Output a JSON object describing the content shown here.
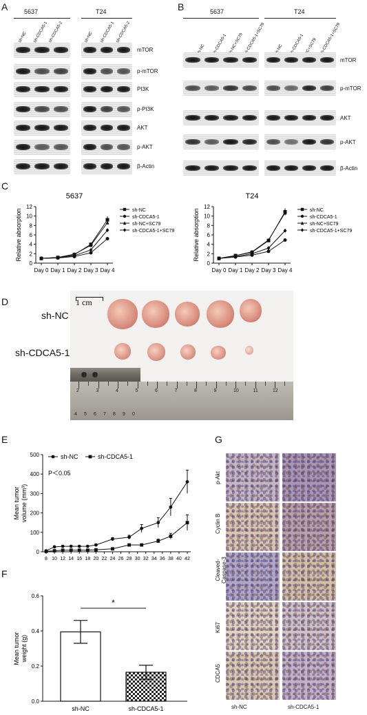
{
  "panel_letters": {
    "a": "A",
    "b": "B",
    "c": "C",
    "d": "D",
    "e": "E",
    "f": "F",
    "g": "G"
  },
  "panelA": {
    "cell_lines": [
      "5637",
      "T24"
    ],
    "lanes_5637": [
      "sh-NC",
      "sh-CDCA5-1",
      "sh-CDCA5-2"
    ],
    "lanes_t24": [
      "sh-NC",
      "sh-CDCA5-1",
      "sh-CDCA5-2"
    ],
    "proteins": [
      "mTOR",
      "p-mTOR",
      "PI3K",
      "p-PI3K",
      "AKT",
      "p-AKT",
      "β-Actin"
    ]
  },
  "panelB": {
    "cell_lines": [
      "5637",
      "T24"
    ],
    "lanes_5637": [
      "sh-NC",
      "sh-CDCA5-1",
      "sh-NC+SC79",
      "sh-CDCA5-1+SC79"
    ],
    "lanes_t24": [
      "sh-NC",
      "sh-CDCA5-1",
      "NC+SC79",
      "sh-CDCA5-1+SC79"
    ],
    "proteins": [
      "mTOR",
      "p-mTOR",
      "AKT",
      "p-AKT",
      "β-Actin"
    ]
  },
  "panelD": {
    "scale": "1 cm",
    "row1": "sh-NC",
    "row2": "sh-CDCA5-1",
    "ruler_top": [
      "2",
      "3",
      "4",
      "5",
      "6",
      "7",
      "8",
      "9",
      "10",
      "11",
      "12"
    ],
    "ruler_bottom": [
      "4",
      "5",
      "6",
      "7",
      "8",
      "9",
      "0"
    ]
  },
  "panelG": {
    "rows": [
      "p-Akt",
      "Cyclin B",
      "Cleaved-\nCaspase-3",
      "Ki67",
      "CDCA5"
    ],
    "cols": [
      "sh-NC",
      "sh-CDCA5-1"
    ]
  },
  "chart_data": [
    {
      "id": "C-5637",
      "type": "line",
      "title": "5637",
      "ylabel": "Relative absorption",
      "categories": [
        "Day 0",
        "Day 1",
        "Day 2",
        "Day 3",
        "Day 4"
      ],
      "ylim": [
        0,
        12
      ],
      "yticks": [
        0,
        2,
        4,
        6,
        8,
        10,
        12
      ],
      "series": [
        {
          "name": "sh-NC",
          "values": [
            1,
            1.2,
            1.8,
            4.0,
            9.2
          ],
          "marker": "square"
        },
        {
          "name": "sh-CDCA5-1",
          "values": [
            1,
            1.1,
            1.4,
            2.2,
            5.2
          ],
          "marker": "circle"
        },
        {
          "name": "sh-NC+SC79",
          "values": [
            1,
            1.2,
            1.9,
            3.8,
            8.6
          ],
          "marker": "triangle"
        },
        {
          "name": "sh-CDCA5-1+SC79",
          "values": [
            1,
            1.15,
            1.6,
            2.8,
            7.0
          ],
          "marker": "diamond"
        }
      ]
    },
    {
      "id": "C-T24",
      "type": "line",
      "title": "T24",
      "ylabel": "Relative absorption",
      "categories": [
        "Day 0",
        "Day 1",
        "Day 2",
        "Day 3",
        "Day 4"
      ],
      "ylim": [
        0,
        12
      ],
      "yticks": [
        0,
        2,
        4,
        6,
        8,
        10,
        12
      ],
      "series": [
        {
          "name": "sh-NC",
          "values": [
            1,
            1.6,
            2.3,
            4.8,
            10.9
          ],
          "marker": "square"
        },
        {
          "name": "sh-CDCA5-1",
          "values": [
            1,
            1.3,
            1.7,
            2.5,
            4.9
          ],
          "marker": "circle"
        },
        {
          "name": "sh-NC+SC79",
          "values": [
            1,
            1.6,
            2.4,
            4.9,
            10.7
          ],
          "marker": "triangle"
        },
        {
          "name": "sh-CDCA5-1+SC79",
          "values": [
            1,
            1.4,
            2.0,
            3.2,
            6.9
          ],
          "marker": "diamond"
        }
      ]
    },
    {
      "id": "E",
      "type": "line",
      "ylabel": "Mean tumor volume (mm³)",
      "annotation": "P＜0.05",
      "x": [
        8,
        10,
        12,
        14,
        16,
        18,
        20,
        22,
        24,
        26,
        28,
        30,
        32,
        34,
        36,
        38,
        40,
        42
      ],
      "ylim": [
        0,
        500
      ],
      "yticks": [
        0,
        100,
        200,
        300,
        400,
        500
      ],
      "series": [
        {
          "name": "sh-NC",
          "x": [
            8,
            10,
            12,
            14,
            16,
            18,
            20,
            24,
            28,
            31,
            35,
            38,
            42
          ],
          "values": [
            5,
            25,
            28,
            28,
            28,
            28,
            35,
            65,
            75,
            120,
            150,
            230,
            360
          ],
          "marker": "circle",
          "err": [
            2,
            4,
            4,
            4,
            4,
            4,
            5,
            8,
            10,
            20,
            25,
            45,
            60
          ]
        },
        {
          "name": "sh-CDCA5-1",
          "x": [
            8,
            10,
            12,
            14,
            16,
            18,
            20,
            24,
            28,
            31,
            35,
            38,
            42
          ],
          "values": [
            2,
            5,
            8,
            8,
            8,
            8,
            10,
            15,
            35,
            35,
            55,
            80,
            150
          ],
          "marker": "square",
          "err": [
            1,
            2,
            2,
            2,
            2,
            2,
            2,
            3,
            5,
            5,
            10,
            15,
            40
          ]
        }
      ]
    },
    {
      "id": "F",
      "type": "bar",
      "ylabel": "Mean tumor weight (g)",
      "categories": [
        "sh-NC",
        "sh-CDCA5-1"
      ],
      "values": [
        0.395,
        0.165
      ],
      "errors": [
        0.065,
        0.04
      ],
      "ylim": [
        0,
        0.6
      ],
      "yticks": [
        0.0,
        0.2,
        0.4,
        0.6
      ],
      "annotation": "*"
    }
  ]
}
